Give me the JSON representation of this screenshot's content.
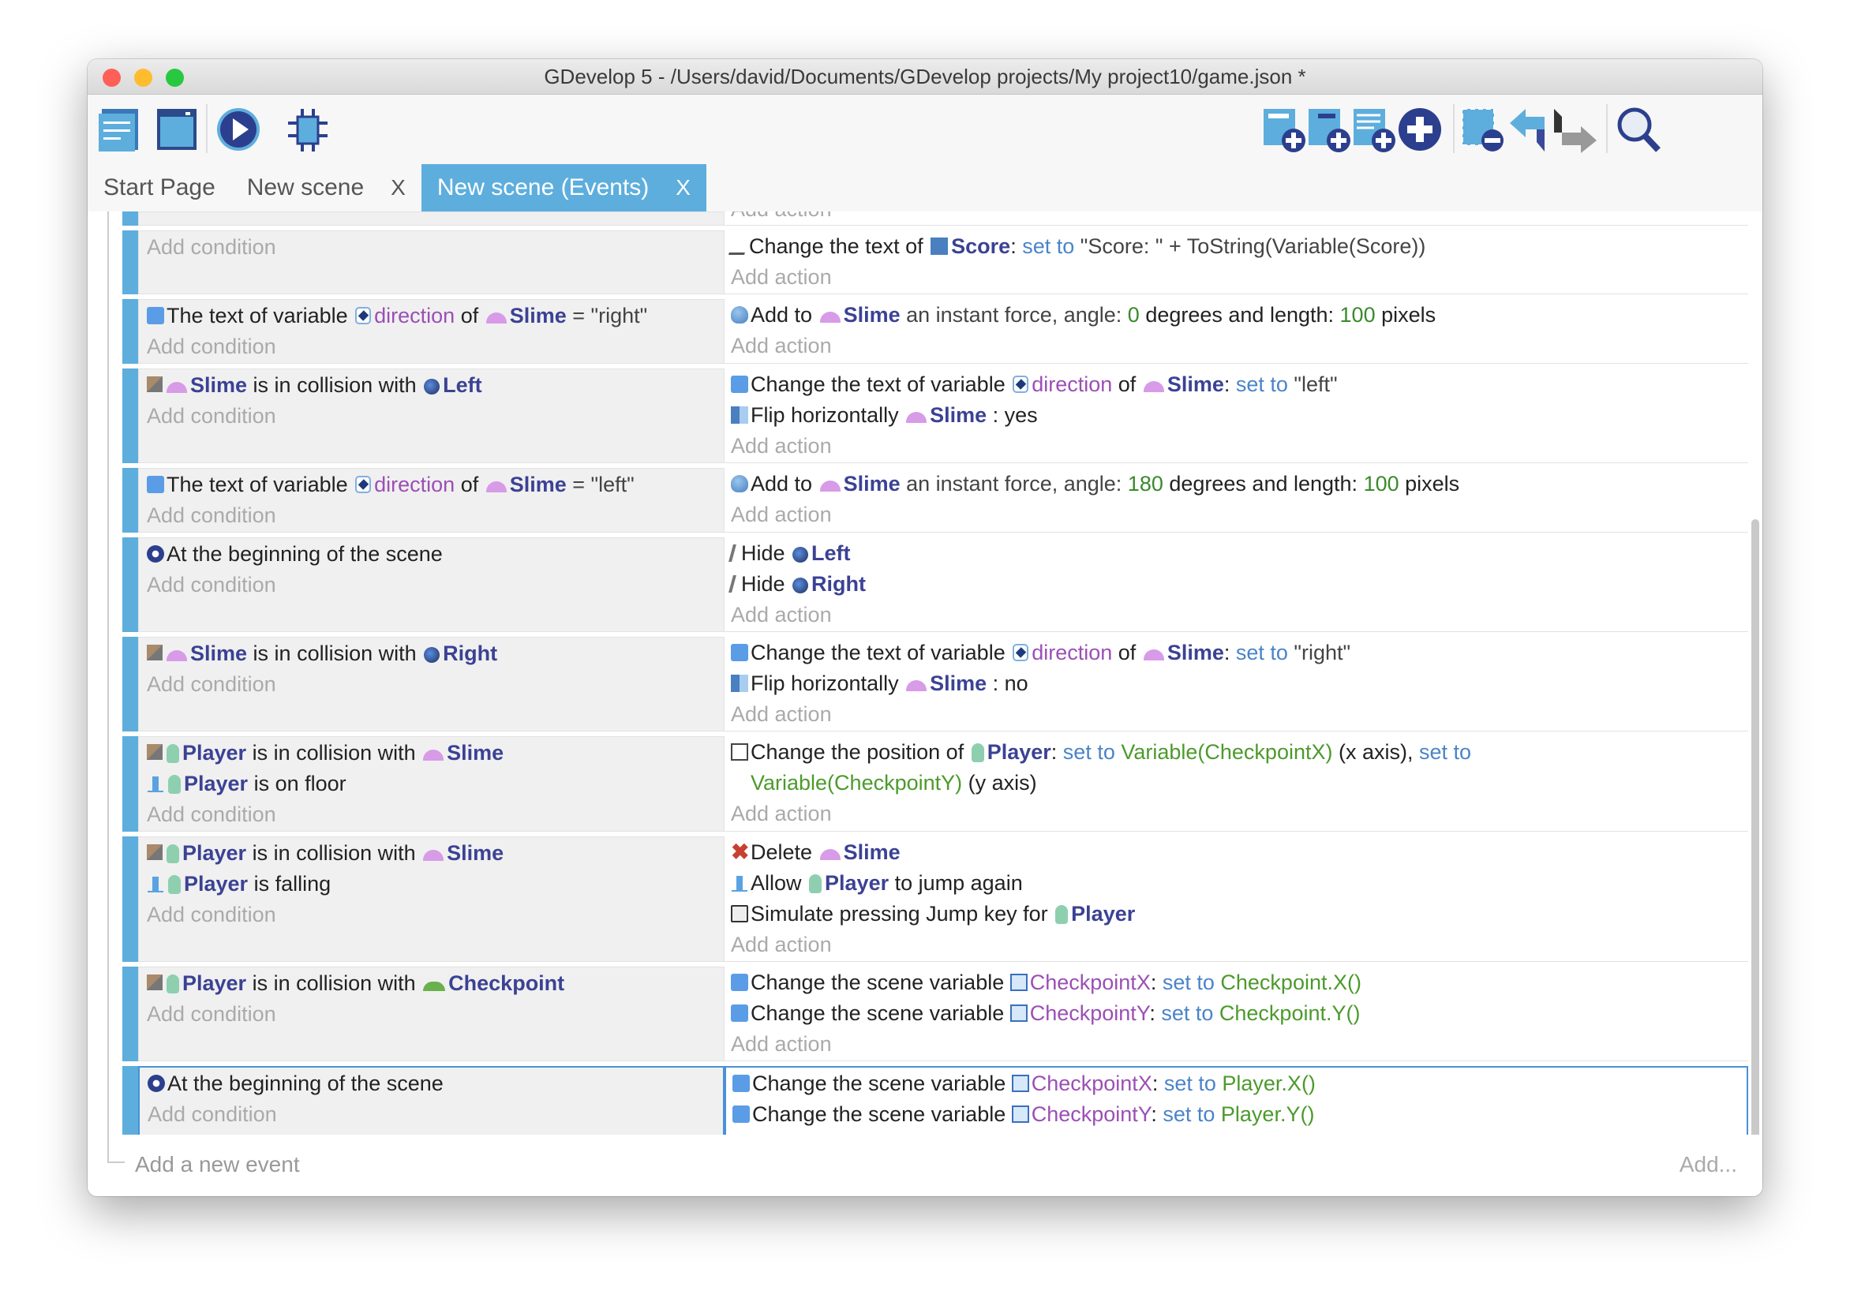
{
  "window": {
    "title": "GDevelop 5 - /Users/david/Documents/GDevelop projects/My project10/game.json *"
  },
  "toolbar": {
    "left": [
      "project-manager-icon",
      "scene-editor-icon",
      "preview-play-icon",
      "debugger-icon"
    ],
    "right": [
      "add-event-icon",
      "add-sub-event-icon",
      "add-comment-icon",
      "add-other-icon",
      "delete-event-icon",
      "undo-icon",
      "redo-icon",
      "search-icon"
    ]
  },
  "tabs": [
    {
      "label": "Start Page",
      "closable": false,
      "active": false
    },
    {
      "label": "New scene",
      "closable": true,
      "active": false,
      "close": "X"
    },
    {
      "label": "New scene (Events)",
      "closable": true,
      "active": true,
      "close": "X"
    }
  ],
  "colors": {
    "accent": "#5daedd",
    "object": "#3b4294",
    "variable": "#9b4fb5",
    "keyword": "#4a84c8",
    "number": "#3a8a2a"
  },
  "add_condition": "Add condition",
  "add_action": "Add action",
  "partial_top_action": "Add action",
  "events": [
    {
      "conditions": [],
      "actions": [
        {
          "icon": "txt",
          "tokens": [
            [
              "p",
              "Change the text of "
            ],
            [
              "o:text",
              "Score"
            ],
            [
              "p",
              ": "
            ],
            [
              "kw",
              "set to"
            ],
            [
              "str",
              " \"Score: \" + ToString(Variable(Score))"
            ]
          ]
        }
      ]
    },
    {
      "conditions": [
        {
          "icon": "var",
          "tokens": [
            [
              "p",
              "The text of variable "
            ],
            [
              "o:varicon",
              "direction"
            ],
            [
              "var",
              ""
            ],
            [
              "p",
              " of "
            ],
            [
              "o:slime",
              "Slime"
            ],
            [
              "str",
              " = \"right\""
            ]
          ]
        }
      ],
      "actions": [
        {
          "icon": "force",
          "tokens": [
            [
              "p",
              "Add to "
            ],
            [
              "o:slime",
              "Slime"
            ],
            [
              "str",
              " an instant force, angle: "
            ],
            [
              "num",
              "0"
            ],
            [
              "p",
              " degrees and length: "
            ],
            [
              "num",
              "100"
            ],
            [
              "p",
              " pixels"
            ]
          ]
        }
      ]
    },
    {
      "conditions": [
        {
          "icon": "collision",
          "tokens": [
            [
              "o:slime",
              "Slime"
            ],
            [
              "p",
              " is in collision with "
            ],
            [
              "o:arrow",
              "Left"
            ]
          ]
        }
      ],
      "actions": [
        {
          "icon": "var",
          "tokens": [
            [
              "p",
              "Change the text of variable "
            ],
            [
              "o:varicon",
              "direction"
            ],
            [
              "p",
              " of "
            ],
            [
              "o:slime",
              "Slime"
            ],
            [
              "p",
              ": "
            ],
            [
              "kw",
              "set to"
            ],
            [
              "str",
              " \"left\""
            ]
          ]
        },
        {
          "icon": "flip",
          "tokens": [
            [
              "p",
              "Flip horizontally "
            ],
            [
              "o:slime",
              "Slime"
            ],
            [
              "p",
              " : yes"
            ]
          ]
        }
      ]
    },
    {
      "conditions": [
        {
          "icon": "var",
          "tokens": [
            [
              "p",
              "The text of variable "
            ],
            [
              "o:varicon",
              "direction"
            ],
            [
              "p",
              " of "
            ],
            [
              "o:slime",
              "Slime"
            ],
            [
              "str",
              " = \"left\""
            ]
          ]
        }
      ],
      "actions": [
        {
          "icon": "force",
          "tokens": [
            [
              "p",
              "Add to "
            ],
            [
              "o:slime",
              "Slime"
            ],
            [
              "str",
              " an instant force, angle: "
            ],
            [
              "num",
              "180"
            ],
            [
              "p",
              " degrees and length: "
            ],
            [
              "num",
              "100"
            ],
            [
              "p",
              " pixels"
            ]
          ]
        }
      ]
    },
    {
      "conditions": [
        {
          "icon": "start",
          "tokens": [
            [
              "p",
              "At the beginning of the scene"
            ]
          ]
        }
      ],
      "actions": [
        {
          "icon": "hide",
          "tokens": [
            [
              "p",
              "Hide "
            ],
            [
              "o:arrow",
              "Left"
            ]
          ]
        },
        {
          "icon": "hide",
          "tokens": [
            [
              "p",
              "Hide "
            ],
            [
              "o:arrow",
              "Right"
            ]
          ]
        }
      ]
    },
    {
      "conditions": [
        {
          "icon": "collision",
          "tokens": [
            [
              "o:slime",
              "Slime"
            ],
            [
              "p",
              " is in collision with "
            ],
            [
              "o:arrow",
              "Right"
            ]
          ]
        }
      ],
      "actions": [
        {
          "icon": "var",
          "tokens": [
            [
              "p",
              "Change the text of variable "
            ],
            [
              "o:varicon",
              "direction"
            ],
            [
              "p",
              " of "
            ],
            [
              "o:slime",
              "Slime"
            ],
            [
              "p",
              ": "
            ],
            [
              "kw",
              "set to"
            ],
            [
              "str",
              " \"right\""
            ]
          ]
        },
        {
          "icon": "flip",
          "tokens": [
            [
              "p",
              "Flip horizontally "
            ],
            [
              "o:slime",
              "Slime"
            ],
            [
              "p",
              " : no"
            ]
          ]
        }
      ]
    },
    {
      "conditions": [
        {
          "icon": "collision",
          "tokens": [
            [
              "o:player",
              "Player"
            ],
            [
              "p",
              " is in collision with "
            ],
            [
              "o:slime",
              "Slime"
            ]
          ]
        },
        {
          "icon": "platformer",
          "tokens": [
            [
              "o:player",
              "Player"
            ],
            [
              "p",
              " is on floor"
            ]
          ]
        }
      ],
      "actions": [
        {
          "icon": "position",
          "tokens": [
            [
              "p",
              "Change the position of "
            ],
            [
              "o:player",
              "Player"
            ],
            [
              "p",
              ": "
            ],
            [
              "kw",
              "set to "
            ],
            [
              "expr",
              "Variable(CheckpointX)"
            ],
            [
              "p",
              " (x axis), "
            ],
            [
              "kw",
              "set to "
            ],
            [
              "expr",
              "Variable(CheckpointY)"
            ],
            [
              "p",
              " (y axis)"
            ]
          ]
        }
      ]
    },
    {
      "conditions": [
        {
          "icon": "collision",
          "tokens": [
            [
              "o:player",
              "Player"
            ],
            [
              "p",
              " is in collision with "
            ],
            [
              "o:slime",
              "Slime"
            ]
          ]
        },
        {
          "icon": "platformer",
          "tokens": [
            [
              "o:player",
              "Player"
            ],
            [
              "p",
              " is falling"
            ]
          ]
        }
      ],
      "actions": [
        {
          "icon": "delete",
          "tokens": [
            [
              "p",
              "Delete "
            ],
            [
              "o:slime",
              "Slime"
            ]
          ]
        },
        {
          "icon": "platformer",
          "tokens": [
            [
              "p",
              "Allow "
            ],
            [
              "o:player",
              "Player"
            ],
            [
              "p",
              " to jump again"
            ]
          ]
        },
        {
          "icon": "key",
          "tokens": [
            [
              "p",
              "Simulate pressing Jump key for "
            ],
            [
              "o:player",
              "Player"
            ]
          ]
        }
      ]
    },
    {
      "conditions": [
        {
          "icon": "collision",
          "tokens": [
            [
              "o:player",
              "Player"
            ],
            [
              "p",
              " is in collision with "
            ],
            [
              "o:check",
              "Checkpoint"
            ]
          ]
        }
      ],
      "actions": [
        {
          "icon": "var",
          "tokens": [
            [
              "p",
              "Change the scene variable "
            ],
            [
              "v:scenevar",
              "CheckpointX"
            ],
            [
              "p",
              ": "
            ],
            [
              "kw",
              "set to "
            ],
            [
              "expr",
              "Checkpoint.X()"
            ]
          ]
        },
        {
          "icon": "var",
          "tokens": [
            [
              "p",
              "Change the scene variable "
            ],
            [
              "v:scenevar",
              "CheckpointY"
            ],
            [
              "p",
              ": "
            ],
            [
              "kw",
              "set to "
            ],
            [
              "expr",
              "Checkpoint.Y()"
            ]
          ]
        }
      ]
    },
    {
      "selected": true,
      "conditions": [
        {
          "icon": "start",
          "tokens": [
            [
              "p",
              "At the beginning of the scene"
            ]
          ]
        }
      ],
      "actions": [
        {
          "icon": "var",
          "tokens": [
            [
              "p",
              "Change the scene variable "
            ],
            [
              "v:scenevar",
              "CheckpointX"
            ],
            [
              "p",
              ": "
            ],
            [
              "kw",
              "set to "
            ],
            [
              "expr",
              "Player.X()"
            ]
          ]
        },
        {
          "icon": "var",
          "tokens": [
            [
              "p",
              "Change the scene variable "
            ],
            [
              "v:scenevar",
              "CheckpointY"
            ],
            [
              "p",
              ": "
            ],
            [
              "kw",
              "set to "
            ],
            [
              "expr",
              "Player.Y()"
            ]
          ]
        }
      ]
    }
  ],
  "footer": {
    "add_event": "Add a new event",
    "add_more": "Add..."
  }
}
